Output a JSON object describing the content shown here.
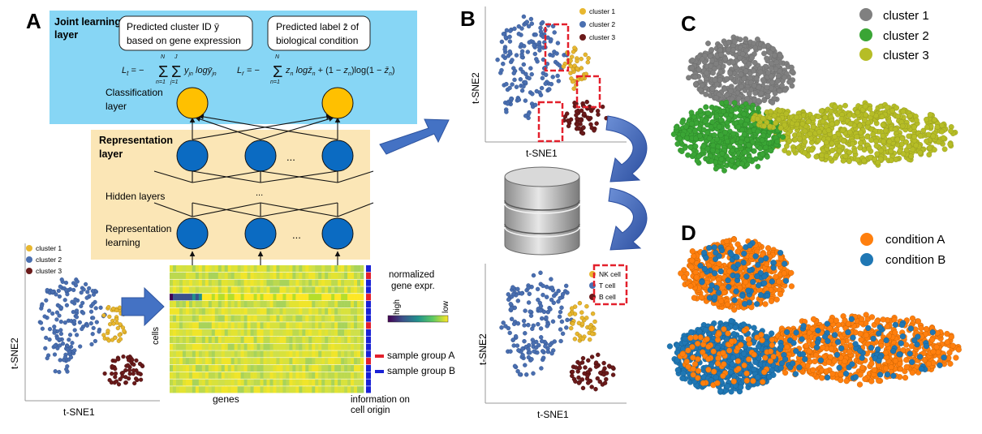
{
  "panel_labels": {
    "a": "A",
    "b": "B",
    "c": "C",
    "d": "D"
  },
  "panel_a": {
    "joint_layer_title": [
      "Joint learning",
      "layer"
    ],
    "box_cluster": [
      "Predicted cluster ID ȳ",
      "based on gene expression"
    ],
    "box_label": [
      "Predicted label z̄ of",
      "biological condition"
    ],
    "formula_lt": "L_t = − Σ_{n=1}^{N} Σ_{j=1}^{J} y_jn^t log ȳ_jn^t",
    "formula_lr": "L_r = − Σ_{n=1}^{N} z_n^r log z̄_n^r + (1 − z_n^r) log(1 − z̄_n^r)",
    "classification_label": [
      "Classification",
      "layer"
    ],
    "representation_title": [
      "Representation",
      "layer"
    ],
    "hidden_layers": "Hidden layers",
    "representation_learning": [
      "Representation",
      "learning"
    ],
    "ellipsis": "...",
    "tsne_legend": [
      "cluster 1",
      "cluster 2",
      "cluster 3"
    ],
    "tsne_x": "t-SNE1",
    "tsne_y": "t-SNE2",
    "heatmap_cells": "cells",
    "heatmap_genes": "genes",
    "colorbar_title": [
      "normalized",
      "gene expr."
    ],
    "colorbar_high": "high",
    "colorbar_low": "low",
    "sample_a": "sample group A",
    "sample_b": "sample group B",
    "info_origin": [
      "information on",
      "cell origin"
    ]
  },
  "panel_b": {
    "legend_top": [
      "cluster 1",
      "cluster 2",
      "cluster 3"
    ],
    "legend_bottom": [
      "NK cell",
      "T cell",
      "B cell"
    ],
    "x_label": "t-SNE1",
    "y_label": "t-SNE2"
  },
  "panel_c": {
    "legend": [
      "cluster 1",
      "cluster 2",
      "cluster 3"
    ]
  },
  "panel_d": {
    "legend": [
      "condition A",
      "condition B"
    ]
  },
  "colors": {
    "cluster1": "#e8b72f",
    "cluster2": "#4a6fb0",
    "cluster3": "#6b1a1a",
    "c_cluster1": "#808080",
    "c_cluster2": "#3aa535",
    "c_cluster3": "#b6bd26",
    "condA": "#ff7f0e",
    "condB": "#1f77b4",
    "joint_bg": "#87d6f5",
    "repr_bg": "#fbe6b6",
    "node_blue": "#0b6bc2",
    "node_yellow": "#ffc000",
    "group_a": "#e3202c",
    "group_b": "#1a22d6",
    "highlight": "#e3202c"
  },
  "icons": [
    "database-icon",
    "curved-arrow-icon",
    "block-arrow-icon"
  ]
}
